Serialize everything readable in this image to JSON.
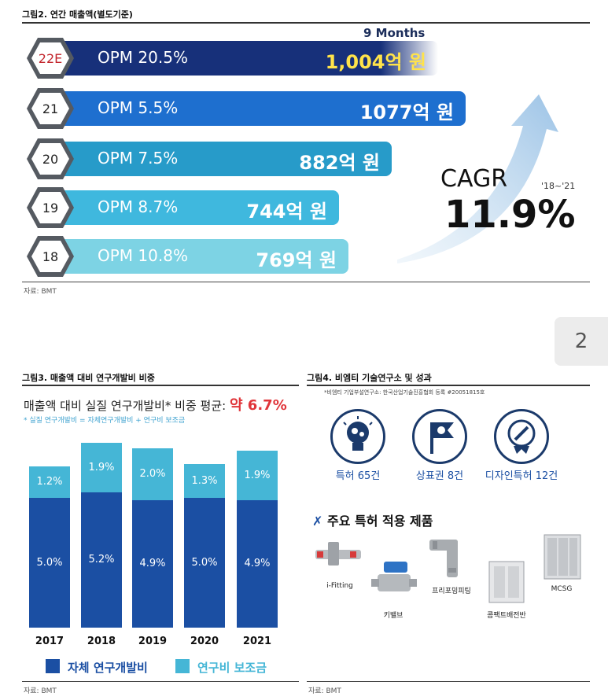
{
  "fig2": {
    "title": "그림2. 연간 매출액(별도기준)",
    "note_9m": "9 Months",
    "cagr_label": "CAGR",
    "cagr_period": "'18~'21",
    "cagr_value": "11.9%",
    "source": "자료: BMT"
  },
  "fig3": {
    "title": "그림3. 매출액 대비 연구개발비 비중",
    "headline": "매출액 대비 실질 연구개발비* 비중 평균:",
    "headline_value": "약 6.7%",
    "footnote": "* 실질 연구개발비 = 자체연구개발비 + 연구비 보조금",
    "legend_self": "자체 연구개발비",
    "legend_subsidy": "연구비 보조금",
    "source": "자료: BMT"
  },
  "fig4": {
    "title": "그림4. 비엠티 기술연구소 및 성과",
    "note": "*비엠티 기업부설연구소: 한국산업기술진흥협회 등록 #20051815호",
    "stats": [
      {
        "label": "특허 65건",
        "icon": "lightbulb-icon"
      },
      {
        "label": "상표권 8건",
        "icon": "flag-icon"
      },
      {
        "label": "디자인특허 12건",
        "icon": "pencil-badge-icon"
      }
    ],
    "products_heading": "주요 특허 적용 제품",
    "products": [
      "i-Fitting",
      "키밸브",
      "프리포밍피팅",
      "콤팩트배전반",
      "MCSG"
    ],
    "source": "자료: BMT"
  },
  "page_number": "2",
  "chart_data": [
    {
      "type": "bar",
      "orientation": "horizontal",
      "categories": [
        "22E",
        "21",
        "20",
        "19",
        "18"
      ],
      "series": [
        {
          "name": "OPM",
          "values": [
            20.5,
            5.5,
            7.5,
            8.7,
            10.8
          ]
        },
        {
          "name": "매출액 (억 원)",
          "values": [
            1004,
            1077,
            882,
            744,
            769
          ]
        }
      ],
      "opm_labels": [
        "OPM 20.5%",
        "OPM 5.5%",
        "OPM 7.5%",
        "OPM 8.7%",
        "OPM 10.8%"
      ],
      "revenue_labels": [
        "1,004억 원",
        "1077억 원",
        "882억 원",
        "744억 원",
        "769억 원"
      ],
      "colors": [
        "#17307a",
        "#1e6fcf",
        "#279bc9",
        "#3fb8de",
        "#7dd3e4"
      ]
    },
    {
      "type": "bar",
      "stacked": true,
      "categories": [
        "2017",
        "2018",
        "2019",
        "2020",
        "2021"
      ],
      "series": [
        {
          "name": "자체 연구개발비",
          "values": [
            5.0,
            5.2,
            4.9,
            5.0,
            4.9
          ],
          "color": "#1b4fa3"
        },
        {
          "name": "연구비 보조금",
          "values": [
            1.2,
            1.9,
            2.0,
            1.3,
            1.9
          ],
          "color": "#45b6d6"
        }
      ],
      "value_labels_bottom": [
        "5.0%",
        "5.2%",
        "4.9%",
        "5.0%",
        "4.9%"
      ],
      "value_labels_top": [
        "1.2%",
        "1.9%",
        "2.0%",
        "1.3%",
        "1.9%"
      ]
    }
  ]
}
